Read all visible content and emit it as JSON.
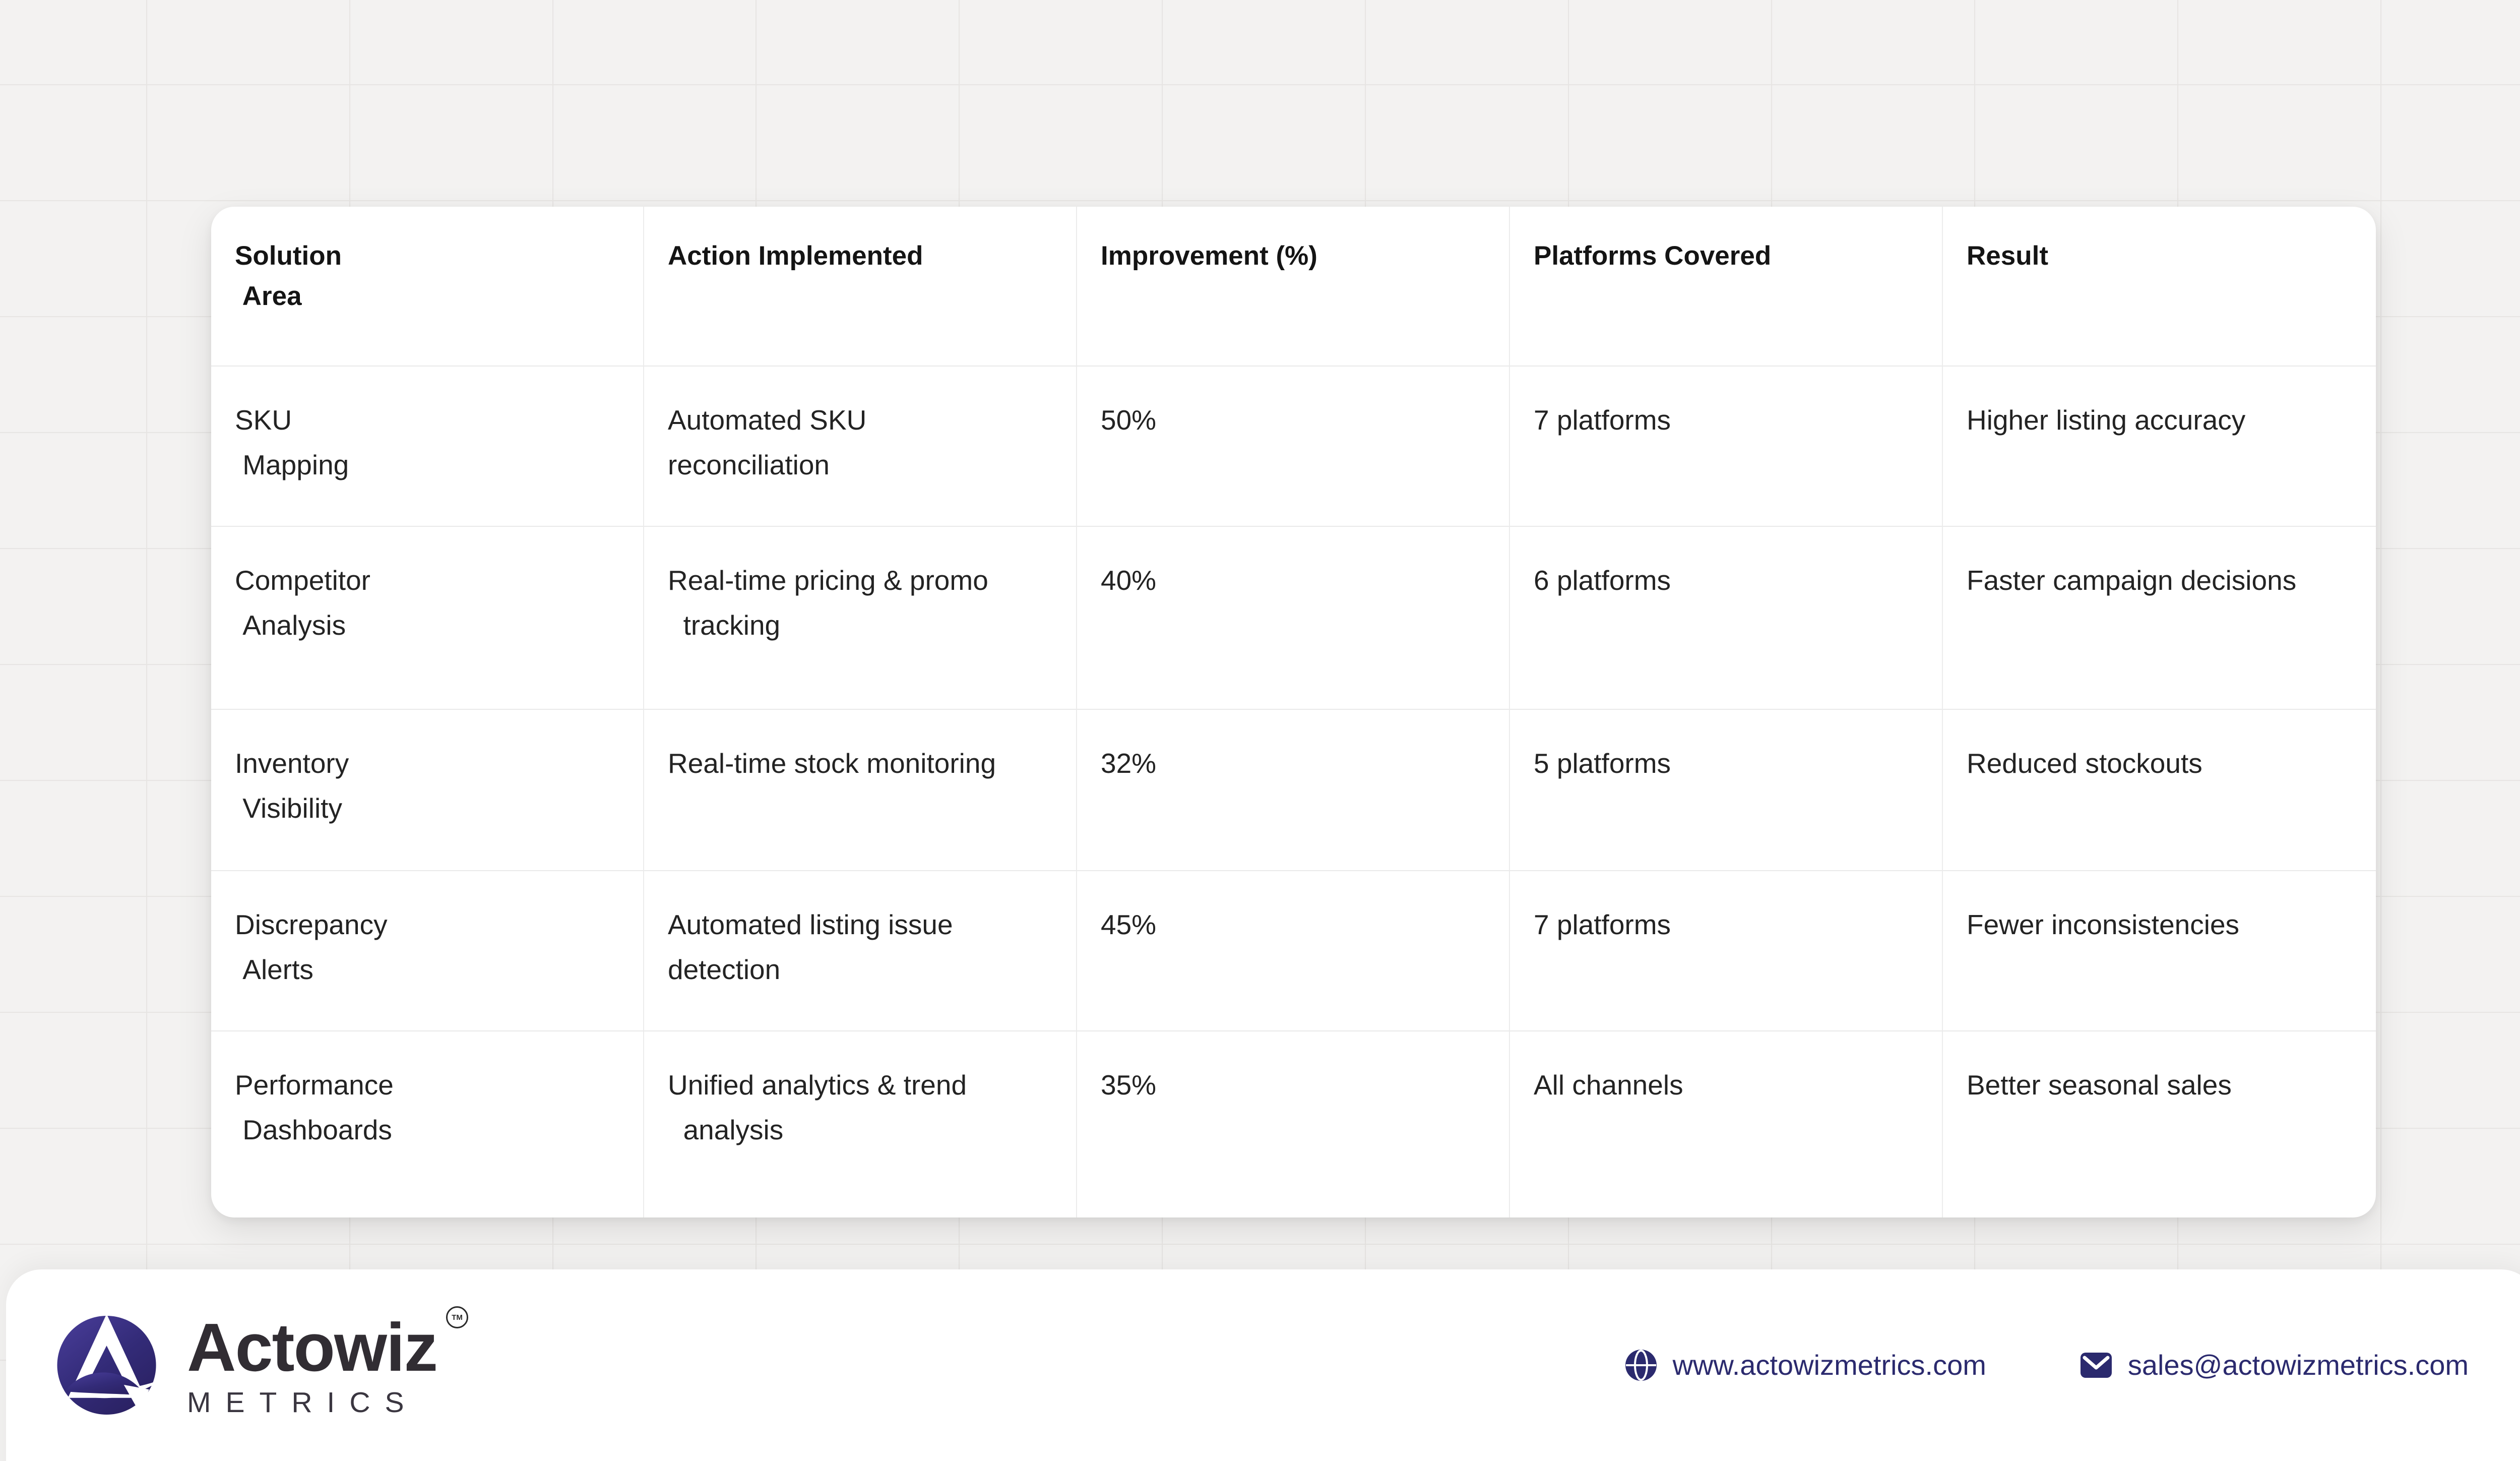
{
  "background": {
    "color": "#f3f2f1",
    "grid_line_color": "#e7e5e3"
  },
  "table": {
    "columns": [
      "Solution\n Area",
      "Action Implemented",
      "Improvement (%)",
      "Platforms Covered",
      "Result"
    ],
    "rows": [
      [
        "SKU\n Mapping",
        "Automated SKU\nreconciliation",
        "50%",
        "7 platforms",
        "Higher listing accuracy"
      ],
      [
        "Competitor\n Analysis",
        "Real-time pricing & promo\n  tracking",
        "40%",
        "6 platforms",
        "Faster campaign decisions"
      ],
      [
        "Inventory\n Visibility",
        "Real-time stock monitoring",
        "32%",
        "5 platforms",
        "Reduced stockouts"
      ],
      [
        "Discrepancy\n Alerts",
        "Automated listing issue\ndetection",
        "45%",
        "7 platforms",
        "Fewer inconsistencies"
      ],
      [
        "Performance\n Dashboards",
        "Unified analytics & trend\n  analysis",
        "35%",
        "All channels",
        "Better seasonal sales"
      ]
    ]
  },
  "chart_data": {
    "type": "table",
    "title": "",
    "columns": [
      "Solution Area",
      "Action Implemented",
      "Improvement (%)",
      "Platforms Covered",
      "Result"
    ],
    "rows": [
      [
        "SKU Mapping",
        "Automated SKU reconciliation",
        "50%",
        "7 platforms",
        "Higher listing accuracy"
      ],
      [
        "Competitor Analysis",
        "Real-time pricing & promo tracking",
        "40%",
        "6 platforms",
        "Faster campaign decisions"
      ],
      [
        "Inventory Visibility",
        "Real-time stock monitoring",
        "32%",
        "5 platforms",
        "Reduced stockouts"
      ],
      [
        "Discrepancy Alerts",
        "Automated listing issue detection",
        "45%",
        "7 platforms",
        "Fewer inconsistencies"
      ],
      [
        "Performance Dashboards",
        "Unified analytics & trend analysis",
        "35%",
        "All channels",
        "Better seasonal sales"
      ]
    ],
    "improvement_values": [
      50,
      40,
      32,
      45,
      35
    ]
  },
  "footer": {
    "brand": {
      "name": "Actowiz",
      "sub": "METRICS",
      "tm": "TM"
    },
    "website": "www.actowizmetrics.com",
    "email": "sales@actowizmetrics.com",
    "accent_color": "#2b2a6e",
    "logo_gradient_top": "#4a3e9b",
    "logo_gradient_bottom": "#2a2162"
  }
}
